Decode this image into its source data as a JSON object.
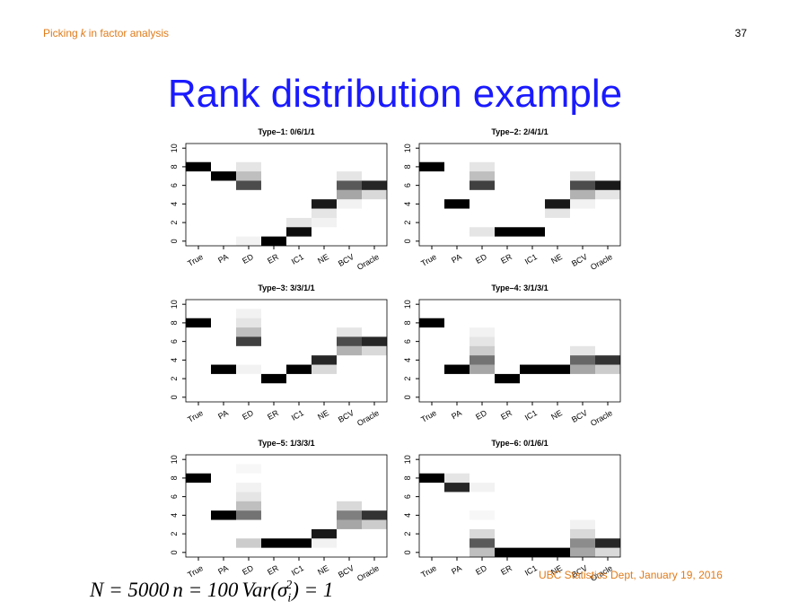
{
  "header": {
    "prefix": "Picking",
    "variable": "k",
    "suffix": "in factor analysis",
    "page": "37"
  },
  "title": "Rank distribution example",
  "footer": "UBC Statistics Dept, January 19, 2016",
  "formula": [
    "N = 5000",
    "n = 100",
    "Var(σ",
    "i",
    "2",
    ") = 1"
  ],
  "chart_data": [
    {
      "type": "heatmap",
      "title": "Type–1: 0/6/1/1",
      "categories": [
        "True",
        "PA",
        "ED",
        "ER",
        "IC1",
        "NE",
        "BCV",
        "Oracle"
      ],
      "ylim": [
        -0.5,
        10.5
      ],
      "yticks": [
        0,
        2,
        4,
        6,
        8,
        10
      ],
      "values": [
        [
          0,
          0,
          0,
          0,
          0,
          0,
          0,
          0,
          1,
          0,
          0
        ],
        [
          0,
          0,
          0,
          0,
          0,
          0,
          0,
          1,
          0,
          0,
          0
        ],
        [
          0.05,
          0,
          0,
          0,
          0,
          0,
          0.7,
          0.25,
          0.1,
          0,
          0
        ],
        [
          1,
          0,
          0,
          0,
          0,
          0,
          0,
          0,
          0,
          0,
          0
        ],
        [
          0,
          0.95,
          0.1,
          0,
          0,
          0,
          0,
          0,
          0,
          0,
          0
        ],
        [
          0,
          0,
          0.05,
          0.1,
          0.9,
          0,
          0,
          0,
          0,
          0,
          0
        ],
        [
          0,
          0,
          0,
          0,
          0.05,
          0.35,
          0.65,
          0.1,
          0,
          0,
          0
        ],
        [
          0,
          0,
          0,
          0,
          0,
          0.15,
          0.85,
          0,
          0,
          0,
          0
        ]
      ]
    },
    {
      "type": "heatmap",
      "title": "Type–2: 2/4/1/1",
      "categories": [
        "True",
        "PA",
        "ED",
        "ER",
        "IC1",
        "NE",
        "BCV",
        "Oracle"
      ],
      "ylim": [
        -0.5,
        10.5
      ],
      "yticks": [
        0,
        2,
        4,
        6,
        8,
        10
      ],
      "values": [
        [
          0,
          0,
          0,
          0,
          0,
          0,
          0,
          0,
          1,
          0,
          0
        ],
        [
          0,
          0,
          0,
          0,
          1,
          0,
          0,
          0,
          0,
          0,
          0
        ],
        [
          0,
          0.1,
          0,
          0,
          0,
          0,
          0.75,
          0.25,
          0.1,
          0,
          0
        ],
        [
          0,
          1,
          0,
          0,
          0,
          0,
          0,
          0,
          0,
          0,
          0
        ],
        [
          0,
          1,
          0,
          0,
          0,
          0,
          0,
          0,
          0,
          0,
          0
        ],
        [
          0,
          0,
          0,
          0.1,
          0.9,
          0,
          0,
          0,
          0,
          0,
          0
        ],
        [
          0,
          0,
          0,
          0,
          0.05,
          0.3,
          0.7,
          0.1,
          0,
          0,
          0
        ],
        [
          0,
          0,
          0,
          0,
          0,
          0.1,
          0.9,
          0,
          0,
          0,
          0
        ]
      ]
    },
    {
      "type": "heatmap",
      "title": "Type–3: 3/3/1/1",
      "categories": [
        "True",
        "PA",
        "ED",
        "ER",
        "IC1",
        "NE",
        "BCV",
        "Oracle"
      ],
      "ylim": [
        -0.5,
        10.5
      ],
      "yticks": [
        0,
        2,
        4,
        6,
        8,
        10
      ],
      "values": [
        [
          0,
          0,
          0,
          0,
          0,
          0,
          0,
          0,
          1,
          0,
          0
        ],
        [
          0,
          0,
          0,
          1,
          0,
          0,
          0,
          0,
          0,
          0,
          0
        ],
        [
          0,
          0,
          0,
          0.05,
          0,
          0,
          0.75,
          0.25,
          0.1,
          0.05,
          0
        ],
        [
          0,
          0,
          1,
          0,
          0,
          0,
          0,
          0,
          0,
          0,
          0
        ],
        [
          0,
          0,
          0,
          1,
          0,
          0,
          0,
          0,
          0,
          0,
          0
        ],
        [
          0,
          0,
          0,
          0.15,
          0.85,
          0,
          0,
          0,
          0,
          0,
          0
        ],
        [
          0,
          0,
          0,
          0,
          0,
          0.3,
          0.7,
          0.1,
          0,
          0,
          0
        ],
        [
          0,
          0,
          0,
          0,
          0,
          0.15,
          0.85,
          0,
          0,
          0,
          0
        ]
      ]
    },
    {
      "type": "heatmap",
      "title": "Type–4: 3/1/3/1",
      "categories": [
        "True",
        "PA",
        "ED",
        "ER",
        "IC1",
        "NE",
        "BCV",
        "Oracle"
      ],
      "ylim": [
        -0.5,
        10.5
      ],
      "yticks": [
        0,
        2,
        4,
        6,
        8,
        10
      ],
      "values": [
        [
          0,
          0,
          0,
          0,
          0,
          0,
          0,
          0,
          1,
          0,
          0
        ],
        [
          0,
          0,
          0,
          1,
          0,
          0,
          0,
          0,
          0,
          0,
          0
        ],
        [
          0,
          0,
          0,
          0.35,
          0.55,
          0.2,
          0.1,
          0.05,
          0,
          0,
          0
        ],
        [
          0,
          0,
          1,
          0,
          0,
          0,
          0,
          0,
          0,
          0,
          0
        ],
        [
          0,
          0,
          0,
          1,
          0,
          0,
          0,
          0,
          0,
          0,
          0
        ],
        [
          0,
          0,
          0,
          1,
          0,
          0,
          0,
          0,
          0,
          0,
          0
        ],
        [
          0,
          0,
          0,
          0.35,
          0.6,
          0.1,
          0,
          0,
          0,
          0,
          0
        ],
        [
          0,
          0,
          0,
          0.2,
          0.8,
          0,
          0,
          0,
          0,
          0,
          0
        ]
      ]
    },
    {
      "type": "heatmap",
      "title": "Type–5: 1/3/3/1",
      "categories": [
        "True",
        "PA",
        "ED",
        "ER",
        "IC1",
        "NE",
        "BCV",
        "Oracle"
      ],
      "ylim": [
        -0.5,
        10.5
      ],
      "yticks": [
        0,
        2,
        4,
        6,
        8,
        10
      ],
      "values": [
        [
          0,
          0,
          0,
          0,
          0,
          0,
          0,
          0,
          1,
          0,
          0
        ],
        [
          0,
          0,
          0,
          0,
          1,
          0,
          0,
          0,
          0,
          0,
          0
        ],
        [
          0,
          0.2,
          0,
          0,
          0.55,
          0.25,
          0.1,
          0.05,
          0,
          0.03,
          0
        ],
        [
          0,
          1,
          0,
          0,
          0,
          0,
          0,
          0,
          0,
          0,
          0
        ],
        [
          0,
          1,
          0,
          0,
          0,
          0,
          0,
          0,
          0,
          0,
          0
        ],
        [
          0,
          0.05,
          0.9,
          0,
          0,
          0,
          0,
          0,
          0,
          0,
          0
        ],
        [
          0,
          0,
          0,
          0.35,
          0.5,
          0.15,
          0,
          0,
          0,
          0,
          0
        ],
        [
          0,
          0,
          0,
          0.2,
          0.8,
          0,
          0,
          0,
          0,
          0,
          0
        ]
      ]
    },
    {
      "type": "heatmap",
      "title": "Type–6: 0/1/6/1",
      "categories": [
        "True",
        "PA",
        "ED",
        "ER",
        "IC1",
        "NE",
        "BCV",
        "Oracle"
      ],
      "ylim": [
        -0.5,
        10.5
      ],
      "yticks": [
        0,
        2,
        4,
        6,
        8,
        10
      ],
      "values": [
        [
          0,
          0,
          0,
          0,
          0,
          0,
          0,
          0,
          1,
          0,
          0
        ],
        [
          0,
          0,
          0,
          0,
          0,
          0,
          0,
          0.85,
          0.1,
          0,
          0
        ],
        [
          0.25,
          0.65,
          0.15,
          0,
          0.03,
          0,
          0,
          0.05,
          0,
          0,
          0
        ],
        [
          1,
          0,
          0,
          0,
          0,
          0,
          0,
          0,
          0,
          0,
          0
        ],
        [
          1,
          0,
          0,
          0,
          0,
          0,
          0,
          0,
          0,
          0,
          0
        ],
        [
          1,
          0,
          0,
          0,
          0,
          0,
          0,
          0,
          0,
          0,
          0
        ],
        [
          0.35,
          0.45,
          0.15,
          0.05,
          0,
          0,
          0,
          0,
          0,
          0,
          0
        ],
        [
          0.15,
          0.85,
          0,
          0,
          0,
          0,
          0,
          0,
          0,
          0,
          0
        ]
      ]
    }
  ]
}
